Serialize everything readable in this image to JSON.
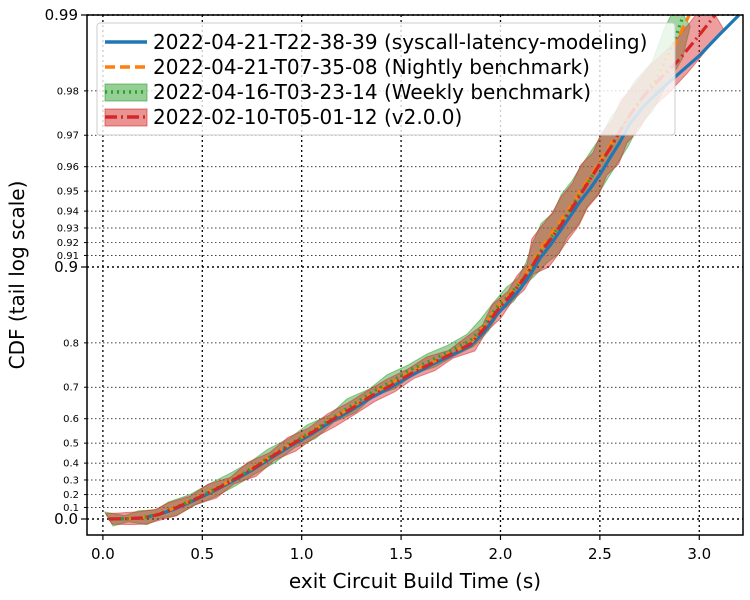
{
  "chart_data": {
    "type": "line",
    "title": "",
    "xlabel": "exit Circuit Build Time (s)",
    "ylabel": "CDF (tail log scale)",
    "xlim": [
      -0.08,
      3.22
    ],
    "x_ticks": [
      "0.0",
      "0.5",
      "1.0",
      "1.5",
      "2.0",
      "2.5",
      "3.0"
    ],
    "y_scale": "tail-log (−log10(1−p))",
    "y_major_ticks": [
      "0.0",
      "0.9",
      "0.99"
    ],
    "y_minor_ticks": [
      "0.1",
      "0.2",
      "0.3",
      "0.4",
      "0.5",
      "0.6",
      "0.7",
      "0.8",
      "0.91",
      "0.92",
      "0.93",
      "0.94",
      "0.95",
      "0.96",
      "0.97",
      "0.98"
    ],
    "grid": true,
    "legend_position": "top-left",
    "series": [
      {
        "name": "2022-04-21-T22-38-39 (syscall-latency-modeling)",
        "color": "#1f77b4",
        "dash": "solid",
        "band": false,
        "x": [
          0.03,
          0.12,
          0.2,
          0.28,
          0.35,
          0.45,
          0.55,
          0.65,
          0.75,
          0.85,
          0.95,
          1.05,
          1.15,
          1.25,
          1.35,
          1.45,
          1.55,
          1.65,
          1.75,
          1.85,
          1.92,
          1.98,
          2.05,
          2.1,
          2.15,
          2.2,
          2.25,
          2.3,
          2.35,
          2.4,
          2.45,
          2.5,
          2.55,
          2.6,
          2.65,
          2.72,
          2.8,
          2.9,
          3.0,
          3.1,
          3.2
        ],
        "y": [
          0.0,
          0.003,
          0.01,
          0.04,
          0.08,
          0.15,
          0.22,
          0.29,
          0.36,
          0.43,
          0.49,
          0.54,
          0.59,
          0.63,
          0.67,
          0.7,
          0.73,
          0.755,
          0.775,
          0.795,
          0.82,
          0.845,
          0.865,
          0.878,
          0.893,
          0.908,
          0.918,
          0.928,
          0.937,
          0.945,
          0.951,
          0.957,
          0.963,
          0.968,
          0.973,
          0.977,
          0.98,
          0.983,
          0.9855,
          0.988,
          0.99
        ]
      },
      {
        "name": "2022-04-21-T07-35-08 (Nightly benchmark)",
        "color": "#ff7f0e",
        "dash": "dashed",
        "band": false,
        "x": [
          0.03,
          0.12,
          0.2,
          0.28,
          0.35,
          0.45,
          0.55,
          0.65,
          0.75,
          0.85,
          0.95,
          1.05,
          1.15,
          1.25,
          1.35,
          1.45,
          1.55,
          1.65,
          1.75,
          1.85,
          1.92,
          1.98,
          2.05,
          2.1,
          2.15,
          2.2,
          2.25,
          2.3,
          2.35,
          2.4,
          2.45,
          2.5,
          2.55,
          2.6,
          2.65,
          2.72,
          2.8,
          2.88,
          2.95
        ],
        "y": [
          0.0,
          0.003,
          0.012,
          0.045,
          0.09,
          0.16,
          0.23,
          0.3,
          0.37,
          0.44,
          0.5,
          0.55,
          0.6,
          0.64,
          0.68,
          0.71,
          0.74,
          0.76,
          0.78,
          0.8,
          0.83,
          0.855,
          0.873,
          0.886,
          0.9,
          0.915,
          0.925,
          0.934,
          0.942,
          0.95,
          0.956,
          0.962,
          0.967,
          0.971,
          0.975,
          0.979,
          0.983,
          0.987,
          0.99
        ]
      },
      {
        "name": "2022-04-16-T03-23-14 (Weekly benchmark)",
        "color": "#2ca02c",
        "dash": "dotted",
        "band": true,
        "x": [
          0.03,
          0.12,
          0.2,
          0.28,
          0.35,
          0.45,
          0.55,
          0.65,
          0.75,
          0.85,
          0.95,
          1.05,
          1.15,
          1.25,
          1.35,
          1.45,
          1.55,
          1.65,
          1.75,
          1.85,
          1.92,
          1.98,
          2.05,
          2.1,
          2.15,
          2.2,
          2.25,
          2.3,
          2.35,
          2.4,
          2.45,
          2.5,
          2.55,
          2.6,
          2.65,
          2.72,
          2.8,
          2.87,
          2.92
        ],
        "y": [
          0.0,
          0.003,
          0.011,
          0.045,
          0.09,
          0.16,
          0.23,
          0.3,
          0.37,
          0.44,
          0.5,
          0.55,
          0.6,
          0.645,
          0.685,
          0.715,
          0.745,
          0.765,
          0.785,
          0.805,
          0.83,
          0.855,
          0.872,
          0.885,
          0.898,
          0.913,
          0.923,
          0.932,
          0.941,
          0.949,
          0.955,
          0.961,
          0.966,
          0.971,
          0.975,
          0.979,
          0.983,
          0.987,
          0.99
        ]
      },
      {
        "name": "2022-02-10-T05-01-12 (v2.0.0)",
        "color": "#d62728",
        "dash": "dashdot",
        "band": true,
        "x": [
          0.03,
          0.12,
          0.2,
          0.28,
          0.35,
          0.45,
          0.55,
          0.65,
          0.75,
          0.85,
          0.95,
          1.05,
          1.15,
          1.25,
          1.35,
          1.45,
          1.55,
          1.65,
          1.75,
          1.85,
          1.92,
          1.98,
          2.05,
          2.1,
          2.15,
          2.2,
          2.25,
          2.3,
          2.35,
          2.4,
          2.45,
          2.5,
          2.55,
          2.6,
          2.65,
          2.72,
          2.8,
          2.9,
          3.0,
          3.08
        ],
        "y": [
          0.0,
          0.003,
          0.01,
          0.04,
          0.085,
          0.155,
          0.225,
          0.295,
          0.365,
          0.435,
          0.495,
          0.545,
          0.595,
          0.635,
          0.675,
          0.705,
          0.735,
          0.758,
          0.778,
          0.798,
          0.825,
          0.85,
          0.87,
          0.884,
          0.898,
          0.912,
          0.922,
          0.931,
          0.94,
          0.948,
          0.955,
          0.961,
          0.966,
          0.971,
          0.975,
          0.979,
          0.982,
          0.985,
          0.988,
          0.99
        ]
      }
    ]
  }
}
